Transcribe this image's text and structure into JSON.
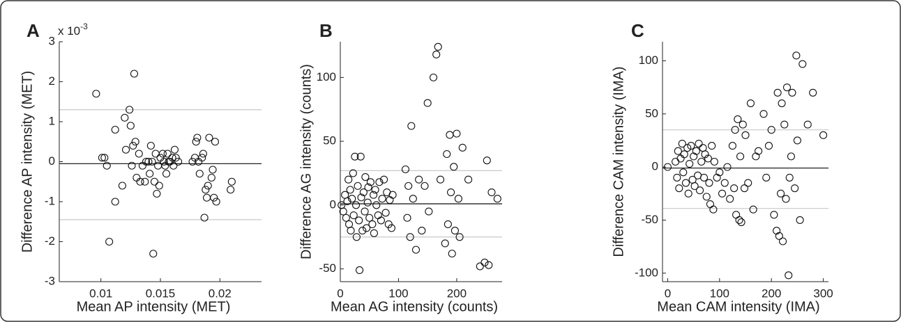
{
  "chart_data": [
    {
      "type": "scatter",
      "panel_label": "A",
      "y_multiplier": {
        "base": "x 10",
        "exponent": "-3"
      },
      "xlabel": "Mean AP intensity (MET)",
      "ylabel": "Difference AP intensity (MET)",
      "xlim": [
        0.0065,
        0.0235
      ],
      "ylim": [
        -3,
        3
      ],
      "xticks": [
        0.01,
        0.015,
        0.02
      ],
      "yticks": [
        3,
        2,
        1,
        0,
        -1,
        -2,
        -3
      ],
      "mean_line": -0.05,
      "limit_lines": [
        1.3,
        -1.45
      ],
      "x": [
        0.0096,
        0.0101,
        0.0103,
        0.0105,
        0.0107,
        0.0112,
        0.0112,
        0.0118,
        0.012,
        0.0121,
        0.0124,
        0.0125,
        0.0126,
        0.0127,
        0.0128,
        0.0129,
        0.013,
        0.0132,
        0.0133,
        0.0135,
        0.0137,
        0.0138,
        0.014,
        0.0141,
        0.0142,
        0.0143,
        0.0144,
        0.0145,
        0.0146,
        0.0147,
        0.0148,
        0.0149,
        0.015,
        0.0152,
        0.0153,
        0.0154,
        0.0155,
        0.0156,
        0.0157,
        0.0158,
        0.016,
        0.0161,
        0.0162,
        0.0163,
        0.0165,
        0.0177,
        0.0179,
        0.018,
        0.0181,
        0.0182,
        0.0183,
        0.0185,
        0.0186,
        0.0187,
        0.0188,
        0.0189,
        0.019,
        0.0191,
        0.0193,
        0.0194,
        0.0195,
        0.0196,
        0.0197,
        0.0209,
        0.021
      ],
      "values": [
        1.7,
        0.1,
        0.1,
        -0.1,
        -2.0,
        0.8,
        -1.0,
        -0.6,
        1.1,
        0.3,
        1.3,
        0.9,
        -0.1,
        0.4,
        2.2,
        0.5,
        -0.4,
        0.2,
        -0.5,
        -0.1,
        -0.5,
        0.0,
        0.0,
        -0.3,
        0.4,
        0.0,
        -2.3,
        -0.5,
        0.2,
        -0.8,
        -0.1,
        -0.6,
        0.1,
        0.2,
        0.0,
        -0.1,
        -0.3,
        0.2,
        0.0,
        0.0,
        0.1,
        -0.1,
        0.3,
        0.1,
        0.0,
        0.0,
        0.1,
        0.5,
        0.6,
        0.0,
        -0.3,
        0.1,
        0.2,
        -1.4,
        -0.7,
        -0.9,
        -0.6,
        0.6,
        -0.4,
        -0.2,
        -0.9,
        0.5,
        -1.0,
        -0.7,
        -0.5
      ]
    },
    {
      "type": "scatter",
      "panel_label": "B",
      "xlabel": "Mean AG intensity (counts)",
      "ylabel": "Difference AG intensity (counts)",
      "xlim": [
        0,
        278
      ],
      "ylim": [
        -60,
        128
      ],
      "xticks": [
        0,
        100,
        200
      ],
      "yticks": [
        100,
        50,
        0,
        -50
      ],
      "mean_line": 1,
      "limit_lines": [
        27,
        -25
      ],
      "x": [
        2,
        5,
        8,
        10,
        12,
        14,
        15,
        17,
        18,
        20,
        22,
        23,
        25,
        27,
        28,
        30,
        32,
        33,
        35,
        36,
        38,
        40,
        42,
        43,
        45,
        47,
        48,
        50,
        52,
        55,
        57,
        58,
        60,
        62,
        65,
        67,
        70,
        72,
        75,
        78,
        80,
        83,
        85,
        88,
        90,
        112,
        115,
        117,
        120,
        122,
        125,
        130,
        135,
        140,
        145,
        150,
        152,
        160,
        165,
        168,
        172,
        180,
        183,
        185,
        188,
        190,
        192,
        195,
        197,
        200,
        203,
        205,
        210,
        220,
        240,
        248,
        252,
        255,
        260,
        270
      ],
      "values": [
        0,
        -5,
        8,
        -10,
        3,
        20,
        -15,
        12,
        -20,
        5,
        25,
        -8,
        38,
        0,
        -25,
        15,
        -12,
        -51,
        38,
        6,
        -20,
        10,
        -5,
        22,
        -18,
        2,
        14,
        -10,
        18,
        -15,
        8,
        -22,
        12,
        0,
        -8,
        18,
        -12,
        5,
        20,
        -6,
        10,
        -15,
        4,
        -18,
        8,
        28,
        -10,
        15,
        -25,
        62,
        5,
        -35,
        20,
        -20,
        15,
        80,
        -5,
        100,
        118,
        124,
        20,
        -30,
        40,
        -15,
        55,
        10,
        -38,
        30,
        -20,
        56,
        5,
        -25,
        45,
        20,
        -48,
        -45,
        35,
        -47,
        10,
        5
      ]
    },
    {
      "type": "scatter",
      "panel_label": "C",
      "xlabel": "Mean CAM intensity (IMA)",
      "ylabel": "Difference CAM intensity (IMA)",
      "xlim": [
        -10,
        310
      ],
      "ylim": [
        -108,
        118
      ],
      "xticks": [
        0,
        100,
        200,
        300
      ],
      "yticks": [
        100,
        50,
        0,
        -50,
        -100
      ],
      "mean_line": -1,
      "limit_lines": [
        35,
        -39
      ],
      "x": [
        0,
        15,
        18,
        20,
        22,
        25,
        28,
        30,
        32,
        35,
        38,
        40,
        42,
        45,
        48,
        50,
        52,
        55,
        58,
        60,
        62,
        65,
        68,
        70,
        72,
        75,
        78,
        80,
        82,
        85,
        88,
        90,
        95,
        100,
        105,
        110,
        115,
        120,
        125,
        128,
        130,
        132,
        135,
        138,
        140,
        142,
        145,
        148,
        150,
        155,
        160,
        165,
        170,
        175,
        185,
        190,
        195,
        200,
        205,
        210,
        212,
        215,
        218,
        220,
        222,
        225,
        228,
        230,
        233,
        235,
        238,
        240,
        245,
        248,
        250,
        255,
        260,
        270,
        280,
        300
      ],
      "values": [
        0,
        5,
        -10,
        15,
        -20,
        8,
        22,
        -5,
        12,
        -15,
        18,
        -25,
        3,
        20,
        -12,
        10,
        -18,
        15,
        -8,
        22,
        -22,
        5,
        18,
        -10,
        12,
        -28,
        8,
        -15,
        -35,
        20,
        -40,
        5,
        -10,
        -5,
        -25,
        -15,
        0,
        -30,
        20,
        -20,
        35,
        -45,
        45,
        -50,
        10,
        -52,
        40,
        -20,
        30,
        -15,
        60,
        -40,
        10,
        15,
        50,
        -10,
        20,
        35,
        -45,
        -60,
        70,
        -65,
        -25,
        60,
        -70,
        40,
        -30,
        75,
        -102,
        -10,
        10,
        70,
        -20,
        105,
        25,
        -50,
        97,
        40,
        70,
        30
      ]
    }
  ]
}
